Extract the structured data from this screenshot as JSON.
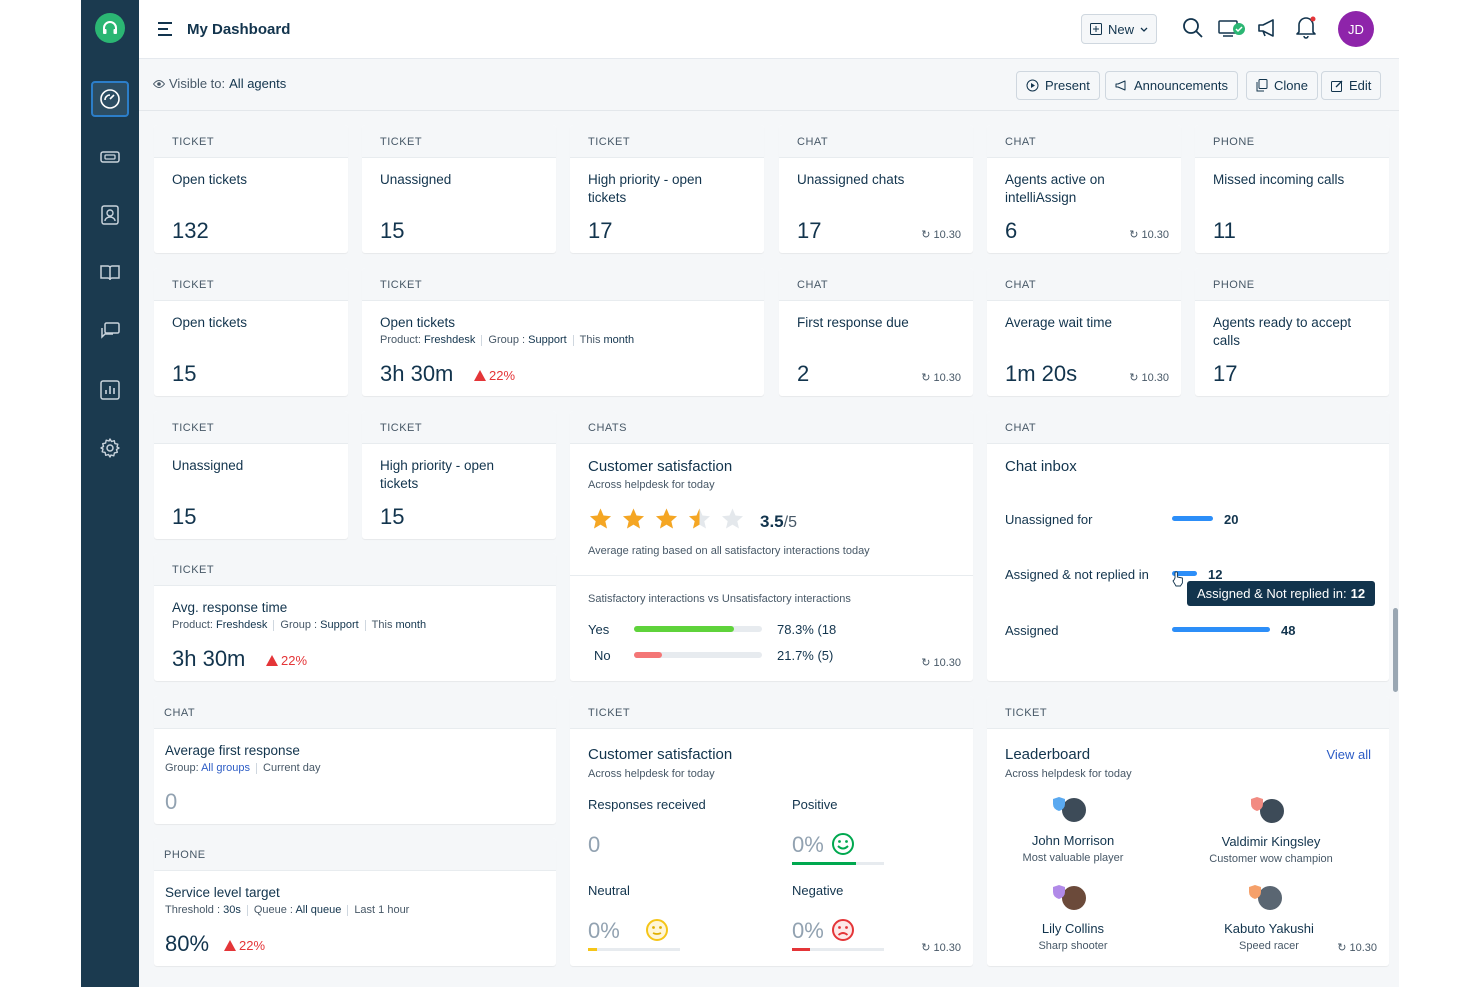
{
  "header": {
    "title": "My Dashboard",
    "new_label": "New",
    "avatar_initials": "JD",
    "visible_label": "Visible to:",
    "visible_value": "All agents",
    "present_label": "Present",
    "announcements_label": "Announcements",
    "clone_label": "Clone",
    "edit_label": "Edit"
  },
  "refresh": "10.30",
  "cards": {
    "t_open": {
      "cat": "TICKET",
      "title": "Open tickets",
      "value": "132"
    },
    "t_unassigned": {
      "cat": "TICKET",
      "title": "Unassigned",
      "value": "15"
    },
    "t_high": {
      "cat": "TICKET",
      "title": "High priority - open tickets",
      "value": "17"
    },
    "c_unassigned": {
      "cat": "CHAT",
      "title": "Unassigned chats",
      "value": "17"
    },
    "c_agents": {
      "cat": "CHAT",
      "title": "Agents active on intelliAssign",
      "value": "6"
    },
    "p_missed": {
      "cat": "PHONE",
      "title": "Missed incoming calls",
      "value": "11"
    },
    "t_open2": {
      "cat": "TICKET",
      "title": "Open tickets",
      "value": "15"
    },
    "t_open3": {
      "cat": "TICKET",
      "title": "Open tickets",
      "product_label": "Product:",
      "product": "Freshdesk",
      "group_label": "Group :",
      "group": "Support",
      "period_label": "This",
      "period": "month",
      "value": "3h 30m",
      "trend": "22%"
    },
    "c_first": {
      "cat": "CHAT",
      "title": "First response due",
      "value": "2"
    },
    "c_wait": {
      "cat": "CHAT",
      "title": "Average wait time",
      "value": "1m 20s"
    },
    "p_ready": {
      "cat": "PHONE",
      "title": "Agents ready to accept calls",
      "value": "17"
    },
    "t_unassigned2": {
      "cat": "TICKET",
      "title": "Unassigned",
      "value": "15"
    },
    "t_high2": {
      "cat": "TICKET",
      "title": "High priority - open tickets",
      "value": "15"
    },
    "t_avg": {
      "cat": "TICKET",
      "title": "Avg. response time",
      "product_label": "Product:",
      "product": "Freshdesk",
      "group_label": "Group :",
      "group": "Support",
      "period_label": "This",
      "period": "month",
      "value": "3h 30m",
      "trend": "22%"
    },
    "c_avgfirst": {
      "cat": "CHAT",
      "title": "Average first response",
      "group_label": "Group:",
      "group": "All groups",
      "period": "Current day",
      "value": "0"
    },
    "p_service": {
      "cat": "PHONE",
      "title": "Service level target",
      "threshold_label": "Threshold :",
      "threshold": "30s",
      "queue_label": "Queue :",
      "queue": "All queue",
      "period": "Last 1 hour",
      "value": "80%",
      "trend": "22%"
    }
  },
  "csat_chat": {
    "cat": "CHATS",
    "title": "Customer satisfaction",
    "subtitle": "Across helpdesk for today",
    "rating": "3.5",
    "rating_max": "/5",
    "rating_value": 3.5,
    "rating_note": "Average rating based on all satisfactory interactions today",
    "split_title": "Satisfactory interactions vs Unsatisfactory interactions",
    "yes_label": "Yes",
    "yes_value": "78.3% (18",
    "yes_pct": 78.3,
    "no_label": "No",
    "no_value": "21.7% (5)",
    "no_pct": 21.7
  },
  "chat_inbox": {
    "cat": "CHAT",
    "title": "Chat inbox",
    "rows": [
      {
        "label": "Unassigned for",
        "value": "20",
        "num": 20
      },
      {
        "label": "Assigned & not replied in",
        "value": "12",
        "num": 12
      },
      {
        "label": "Assigned",
        "value": "48",
        "num": 48
      }
    ],
    "tooltip_label": "Assigned & Not replied in:",
    "tooltip_value": "12"
  },
  "csat_ticket": {
    "cat": "TICKET",
    "title": "Customer satisfaction",
    "subtitle": "Across helpdesk for today",
    "responses_label": "Responses received",
    "responses_value": "0",
    "positive_label": "Positive",
    "positive_value": "0%",
    "neutral_label": "Neutral",
    "neutral_value": "0%",
    "negative_label": "Negative",
    "negative_value": "0%"
  },
  "leaderboard": {
    "cat": "TICKET",
    "title": "Leaderboard",
    "subtitle": "Across helpdesk for today",
    "view_all": "View all",
    "players": [
      {
        "name": "John Morrison",
        "award": "Most valuable player"
      },
      {
        "name": "Valdimir Kingsley",
        "award": "Customer wow champion"
      },
      {
        "name": "Lily Collins",
        "award": "Sharp shooter"
      },
      {
        "name": "Kabuto Yakushi",
        "award": "Speed racer"
      }
    ]
  },
  "colors": {
    "sidebar": "#1b3a4f",
    "accent": "#2c8ef8",
    "brand": "#2bb673",
    "avatar": "#8e24aa",
    "positive": "#00a84f",
    "negative": "#e43538",
    "star": "#f5a623"
  }
}
